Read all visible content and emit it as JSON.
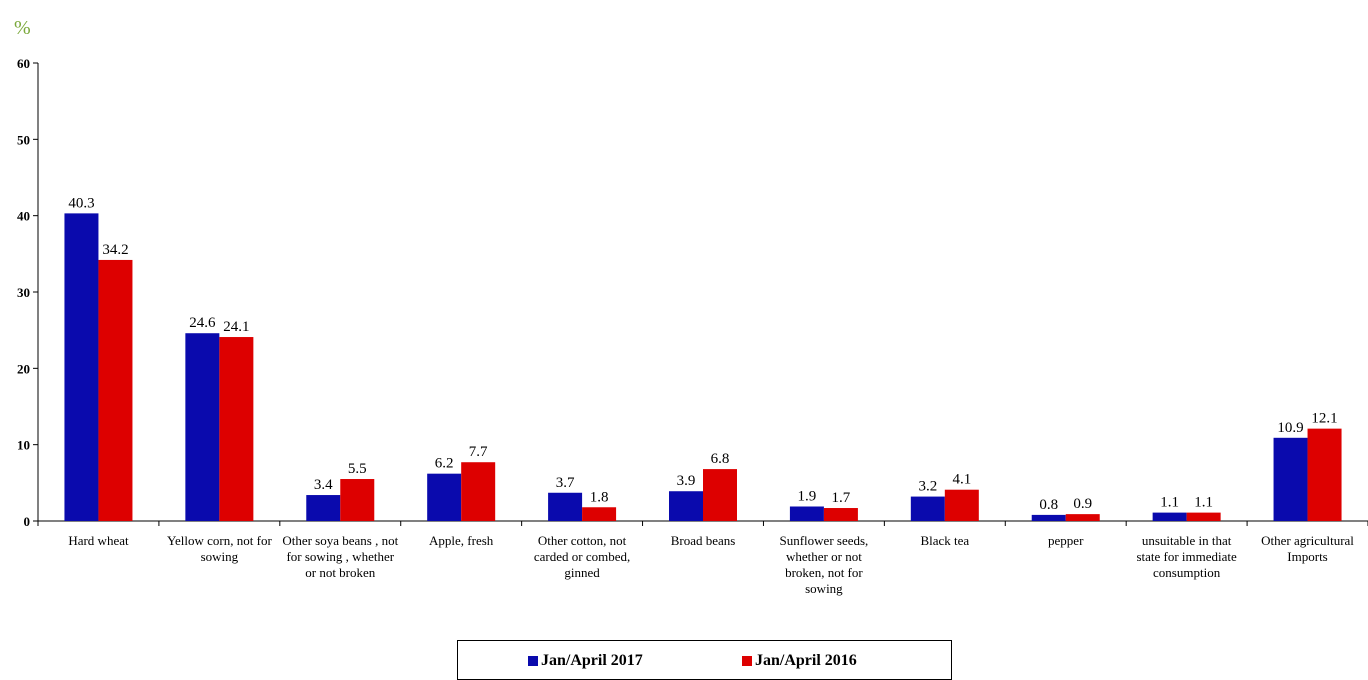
{
  "chart_data": {
    "type": "bar",
    "y_label": "%",
    "categories": [
      "Hard wheat",
      "Yellow corn, not for sowing",
      "Other soya beans , not for sowing , whether or not broken",
      "Apple, fresh",
      "Other cotton, not carded or combed, ginned",
      "Broad beans",
      "Sunflower seeds, whether or not broken, not for sowing",
      "Black tea",
      "pepper",
      "unsuitable in that state for immediate consumption",
      "Other agricultural Imports"
    ],
    "series": [
      {
        "name": "Jan/April 2017",
        "color": "#0a0aad",
        "values": [
          40.3,
          24.6,
          3.4,
          6.2,
          3.7,
          3.9,
          1.9,
          3.2,
          0.8,
          1.1,
          10.9
        ]
      },
      {
        "name": "Jan/April 2016",
        "color": "#dd0000",
        "values": [
          34.2,
          24.1,
          5.5,
          7.7,
          1.8,
          6.8,
          1.7,
          4.1,
          0.9,
          1.1,
          12.1
        ]
      }
    ],
    "ylim": [
      0,
      60
    ],
    "yticks": [
      0,
      10,
      20,
      30,
      40,
      50,
      60
    ],
    "legend": "bottom"
  }
}
